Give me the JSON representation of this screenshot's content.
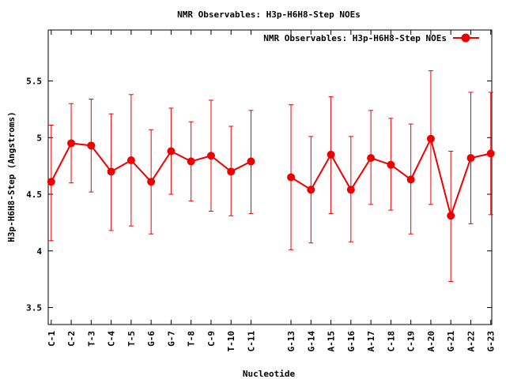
{
  "chart_data": {
    "type": "line",
    "title": "NMR Observables: H3p-H6H8-Step NOEs",
    "xlabel": "Nucleotide",
    "ylabel": "H3p-H6H8-Step (Angstroms)",
    "ylim": [
      3.35,
      5.95
    ],
    "yticks": [
      3.5,
      4,
      4.5,
      5,
      5.5
    ],
    "ytick_labels": [
      "3.5",
      "4",
      "4.5",
      "5",
      "5.5"
    ],
    "xlim": [
      0.85,
      23.05
    ],
    "grid": false,
    "legend_position": "top-right",
    "color": "#ee0000",
    "series": [
      {
        "name": "NMR Observables: H3p-H6H8-Step NOEs",
        "segments": [
          {
            "x": [
              1,
              2,
              3,
              4,
              5,
              6,
              7,
              8,
              9,
              10,
              11
            ],
            "labels": [
              "C-1",
              "C-2",
              "T-3",
              "C-4",
              "T-5",
              "G-6",
              "G-7",
              "T-8",
              "C-9",
              "T-10",
              "C-11"
            ],
            "y": [
              4.61,
              4.95,
              4.93,
              4.7,
              4.8,
              4.61,
              4.88,
              4.79,
              4.84,
              4.7,
              4.79
            ],
            "err_low": [
              4.09,
              4.6,
              4.52,
              4.18,
              4.22,
              4.15,
              4.5,
              4.44,
              4.35,
              4.31,
              4.33
            ],
            "err_high": [
              5.11,
              5.3,
              5.34,
              5.21,
              5.38,
              5.07,
              5.26,
              5.14,
              5.33,
              5.1,
              5.24
            ]
          },
          {
            "x": [
              13,
              14,
              15,
              16,
              17,
              18,
              19,
              20,
              21,
              22,
              23
            ],
            "labels": [
              "G-13",
              "G-14",
              "A-15",
              "G-16",
              "A-17",
              "C-18",
              "C-19",
              "A-20",
              "G-21",
              "A-22",
              "G-23"
            ],
            "y": [
              4.65,
              4.54,
              4.85,
              4.54,
              4.82,
              4.76,
              4.63,
              4.99,
              4.31,
              4.82,
              4.86
            ],
            "err_low": [
              4.01,
              4.07,
              4.33,
              4.08,
              4.41,
              4.36,
              4.15,
              4.41,
              3.73,
              4.24,
              4.32
            ],
            "err_high": [
              5.29,
              5.01,
              5.36,
              5.01,
              5.24,
              5.17,
              5.12,
              5.59,
              4.88,
              5.4,
              5.4
            ]
          }
        ]
      }
    ]
  }
}
